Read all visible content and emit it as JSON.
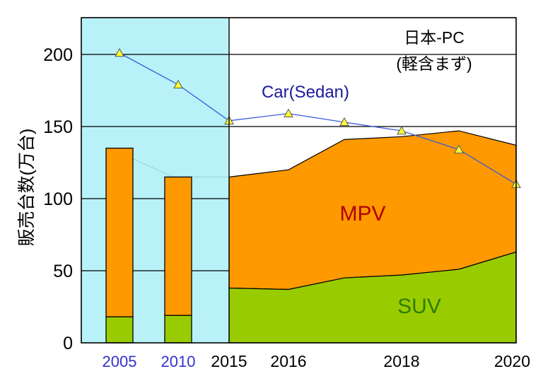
{
  "chart_data": {
    "type": "area",
    "title": "",
    "ylabel": "販売台数(万台)",
    "ylim": [
      0,
      220
    ],
    "yticks": [
      0,
      50,
      100,
      150,
      200
    ],
    "x_ticks": [
      "2005",
      "2010",
      "2015",
      "2016",
      "2017",
      "2018",
      "2019",
      "2020"
    ],
    "x_tick_labels": [
      "2005",
      "2010",
      "2015",
      "2016",
      "",
      "2018",
      "",
      "2020"
    ],
    "bars": [
      {
        "x": "2005",
        "suv": 18,
        "total": 135
      },
      {
        "x": "2010",
        "suv": 19,
        "total": 115
      }
    ],
    "area_x": [
      "2015",
      "2016",
      "2017",
      "2018",
      "2019",
      "2020"
    ],
    "series": [
      {
        "name": "SUV",
        "values": [
          38,
          37,
          45,
          47,
          51,
          63
        ],
        "color": "#99cc00",
        "label_color": "#2e7d00"
      },
      {
        "name": "MPV",
        "values_top": [
          115,
          120,
          141,
          143,
          147,
          137
        ],
        "color": "#ff9900",
        "label_color": "#b00000"
      },
      {
        "name": "Car(Sedan)",
        "x": [
          "2005",
          "2010",
          "2015",
          "2016",
          "2017",
          "2018",
          "2019",
          "2020"
        ],
        "values": [
          201,
          179,
          154,
          159,
          153,
          147,
          134,
          110
        ],
        "color": "#3b5bdb",
        "label_color": "#1a1aa0"
      }
    ],
    "annotation_lines": [
      "日本-PC",
      "(軽含まず)"
    ],
    "highlight_region": {
      "from": "start",
      "to": "2015",
      "color": "#b8f2f8"
    },
    "tick_label_colors": {
      "past": "#3333cc",
      "future": "#000000"
    },
    "grid": true
  }
}
